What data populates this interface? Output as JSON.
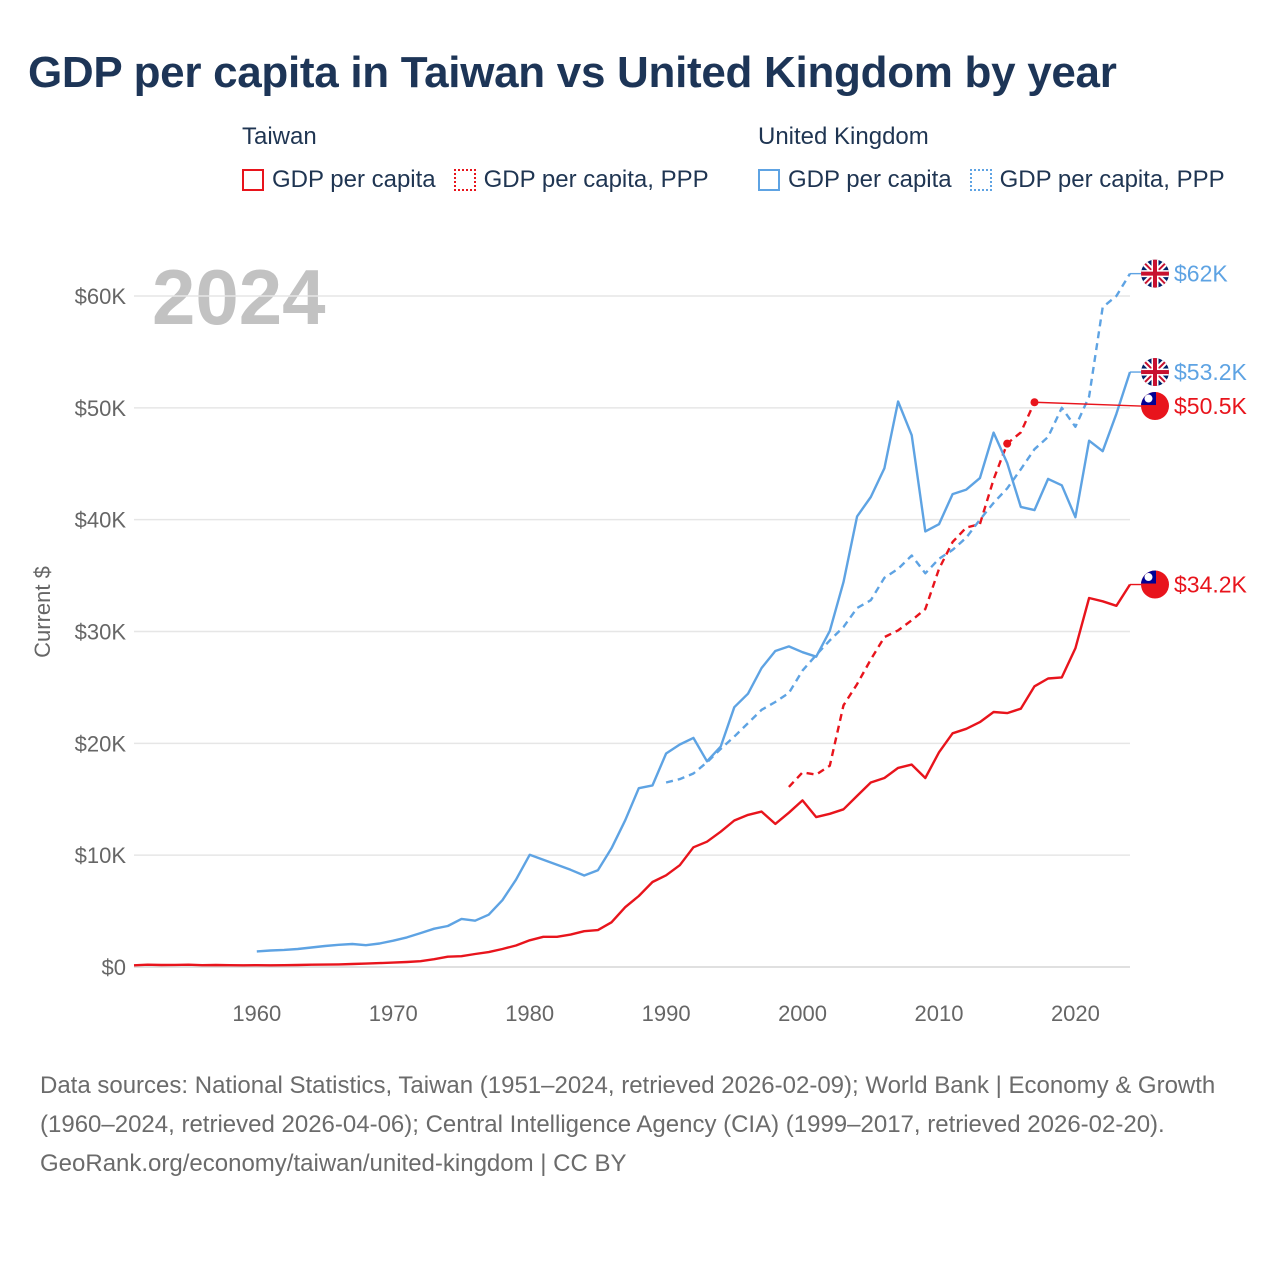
{
  "title": "GDP per capita in Taiwan vs United Kingdom by year",
  "legend": {
    "groups": [
      {
        "name": "Taiwan",
        "color": "#e8141c",
        "items": [
          {
            "label": "GDP per capita",
            "style": "solid"
          },
          {
            "label": "GDP per capita, PPP",
            "style": "dotted"
          }
        ]
      },
      {
        "name": "United Kingdom",
        "color": "#5ea3e3",
        "items": [
          {
            "label": "GDP per capita",
            "style": "solid"
          },
          {
            "label": "GDP per capita, PPP",
            "style": "dotted"
          }
        ]
      }
    ]
  },
  "footer": {
    "sources": "Data sources: National Statistics, Taiwan (1951–2024, retrieved 2026-02-09); World Bank | Economy & Growth (1960–2024, retrieved 2026-04-06); Central Intelligence Agency (CIA) (1999–2017, retrieved 2026-02-20).",
    "credit": "GeoRank.org/economy/taiwan/united-kingdom | CC BY"
  },
  "chart_data": {
    "type": "line",
    "year_label": "2024",
    "ylabel": "Current $",
    "xlabel": "",
    "xlim": [
      1951,
      2024
    ],
    "ylim": [
      0,
      62000
    ],
    "grid": true,
    "x_ticks": [
      1960,
      1970,
      1980,
      1990,
      2000,
      2010,
      2020
    ],
    "y_ticks": [
      {
        "value": 0,
        "label": "$0"
      },
      {
        "value": 10000,
        "label": "$10K"
      },
      {
        "value": 20000,
        "label": "$20K"
      },
      {
        "value": 30000,
        "label": "$30K"
      },
      {
        "value": 40000,
        "label": "$40K"
      },
      {
        "value": 50000,
        "label": "$50K"
      },
      {
        "value": 60000,
        "label": "$60K"
      }
    ],
    "series": [
      {
        "name": "Taiwan GDP per capita",
        "color": "#e8141c",
        "dash": "solid",
        "end_label": "$34.2K",
        "flag": "taiwan-flag-icon",
        "x": [
          1951,
          1952,
          1953,
          1954,
          1955,
          1956,
          1957,
          1958,
          1959,
          1960,
          1961,
          1962,
          1963,
          1964,
          1965,
          1966,
          1967,
          1968,
          1969,
          1970,
          1971,
          1972,
          1973,
          1974,
          1975,
          1976,
          1977,
          1978,
          1979,
          1980,
          1981,
          1982,
          1983,
          1984,
          1985,
          1986,
          1987,
          1988,
          1989,
          1990,
          1991,
          1992,
          1993,
          1994,
          1995,
          1996,
          1997,
          1998,
          1999,
          2000,
          2001,
          2002,
          2003,
          2004,
          2005,
          2006,
          2007,
          2008,
          2009,
          2010,
          2011,
          2012,
          2013,
          2014,
          2015,
          2016,
          2017,
          2018,
          2019,
          2020,
          2021,
          2022,
          2023,
          2024
        ],
        "values": [
          154,
          203,
          175,
          192,
          206,
          162,
          177,
          165,
          149,
          164,
          153,
          164,
          179,
          206,
          216,
          236,
          265,
          305,
          345,
          393,
          443,
          522,
          695,
          920,
          964,
          1158,
          1335,
          1606,
          1925,
          2385,
          2700,
          2700,
          2900,
          3200,
          3300,
          4000,
          5350,
          6350,
          7600,
          8200,
          9100,
          10700,
          11200,
          12100,
          13100,
          13600,
          13900,
          12800,
          13800,
          14900,
          13400,
          13700,
          14100,
          15300,
          16500,
          16900,
          17800,
          18100,
          16900,
          19200,
          20900,
          21300,
          21900,
          22800,
          22700,
          23100,
          25100,
          25800,
          25900,
          28500,
          33000,
          32700,
          32300,
          34200
        ]
      },
      {
        "name": "Taiwan GDP per capita, PPP",
        "color": "#e8141c",
        "dash": "dotted",
        "end_label": "$50.5K",
        "flag": "taiwan-flag-icon",
        "x": [
          1999,
          2000,
          2001,
          2002,
          2003,
          2004,
          2005,
          2006,
          2007,
          2008,
          2009,
          2010,
          2011,
          2012,
          2013,
          2014,
          2015,
          2016,
          2017
        ],
        "values": [
          16100,
          17400,
          17200,
          18000,
          23400,
          25300,
          27500,
          29500,
          30100,
          31000,
          32000,
          35600,
          38000,
          39300,
          39600,
          43600,
          46800,
          47800,
          50500
        ]
      },
      {
        "name": "United Kingdom GDP per capita",
        "color": "#5ea3e3",
        "dash": "solid",
        "end_label": "$53.2K",
        "flag": "uk-flag-icon",
        "x": [
          1960,
          1961,
          1962,
          1963,
          1964,
          1965,
          1966,
          1967,
          1968,
          1969,
          1970,
          1971,
          1972,
          1973,
          1974,
          1975,
          1976,
          1977,
          1978,
          1979,
          1980,
          1981,
          1982,
          1983,
          1984,
          1985,
          1986,
          1987,
          1988,
          1989,
          1990,
          1991,
          1992,
          1993,
          1994,
          1995,
          1996,
          1997,
          1998,
          1999,
          2000,
          2001,
          2002,
          2003,
          2004,
          2005,
          2006,
          2007,
          2008,
          2009,
          2010,
          2011,
          2012,
          2013,
          2014,
          2015,
          2016,
          2017,
          2018,
          2019,
          2020,
          2021,
          2022,
          2023,
          2024
        ],
        "values": [
          1398,
          1472,
          1526,
          1613,
          1748,
          1874,
          1986,
          2058,
          1951,
          2100,
          2348,
          2649,
          3030,
          3426,
          3666,
          4299,
          4138,
          4681,
          5977,
          7804,
          10032,
          9599,
          9146,
          8692,
          8179,
          8652,
          10612,
          13119,
          15987,
          16239,
          19095,
          19900,
          20487,
          18389,
          19709,
          23228,
          24437,
          26734,
          28254,
          28669,
          28150,
          27744,
          30057,
          34419,
          40290,
          42030,
          44599,
          50566,
          47549,
          38952,
          39599,
          42285,
          42687,
          43713,
          47787,
          45071,
          41146,
          40857,
          43646,
          43070,
          40217,
          47058,
          46125,
          49464,
          53200
        ]
      },
      {
        "name": "United Kingdom GDP per capita, PPP",
        "color": "#5ea3e3",
        "dash": "dotted",
        "end_label": "$62K",
        "flag": "uk-flag-icon",
        "x": [
          1990,
          1991,
          1992,
          1993,
          1994,
          1995,
          1996,
          1997,
          1998,
          1999,
          2000,
          2001,
          2002,
          2003,
          2004,
          2005,
          2006,
          2007,
          2008,
          2009,
          2010,
          2011,
          2012,
          2013,
          2014,
          2015,
          2016,
          2017,
          2018,
          2019,
          2020,
          2021,
          2022,
          2023,
          2024
        ],
        "values": [
          16500,
          16800,
          17300,
          18300,
          19500,
          20600,
          21800,
          23000,
          23700,
          24500,
          26500,
          27900,
          29200,
          30400,
          32100,
          32800,
          34800,
          35600,
          36800,
          35200,
          36500,
          37300,
          38400,
          40000,
          41500,
          42800,
          44500,
          46300,
          47400,
          50000,
          48300,
          51000,
          59000,
          60000,
          62000
        ]
      }
    ]
  }
}
